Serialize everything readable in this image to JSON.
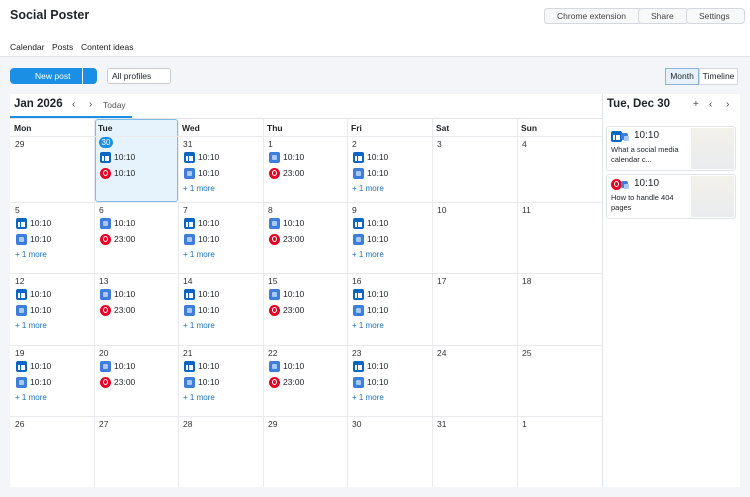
{
  "app": {
    "title": "Social Poster",
    "actions": [
      "Chrome extension",
      "Share",
      "Settings"
    ],
    "tabs": [
      "Calendar",
      "Posts",
      "Content ideas"
    ],
    "active_tab": 0
  },
  "toolbar": {
    "new_post": "New post",
    "profiles": "All profiles",
    "views": [
      "Month",
      "Timeline"
    ],
    "active_view": 0
  },
  "calendar": {
    "month": "Jan 2026",
    "today_button": "Today",
    "weekdays": [
      "Mon",
      "Tue",
      "Wed",
      "Thu",
      "Fri",
      "Sat",
      "Sun"
    ],
    "weeks": [
      [
        {
          "date": "29",
          "posts": []
        },
        {
          "date": "30",
          "today": true,
          "posts": [
            {
              "platform": "linkedin",
              "time": "10:10"
            },
            {
              "platform": "pinterest",
              "time": "10:10"
            }
          ]
        },
        {
          "date": "31",
          "posts": [
            {
              "platform": "linkedin",
              "time": "10:10"
            },
            {
              "platform": "gbp",
              "time": "10:10"
            }
          ],
          "more": "+ 1 more"
        },
        {
          "date": "1",
          "posts": [
            {
              "platform": "gbp",
              "time": "10:10"
            },
            {
              "platform": "pinterest",
              "time": "23:00"
            }
          ]
        },
        {
          "date": "2",
          "posts": [
            {
              "platform": "linkedin",
              "time": "10:10"
            },
            {
              "platform": "gbp",
              "time": "10:10"
            }
          ],
          "more": "+ 1 more"
        },
        {
          "date": "3",
          "posts": []
        },
        {
          "date": "4",
          "posts": []
        }
      ],
      [
        {
          "date": "5",
          "posts": [
            {
              "platform": "linkedin",
              "time": "10:10"
            },
            {
              "platform": "gbp",
              "time": "10:10"
            }
          ],
          "more": "+ 1 more"
        },
        {
          "date": "6",
          "posts": [
            {
              "platform": "gbp",
              "time": "10:10"
            },
            {
              "platform": "pinterest",
              "time": "23:00"
            }
          ]
        },
        {
          "date": "7",
          "posts": [
            {
              "platform": "linkedin",
              "time": "10:10"
            },
            {
              "platform": "gbp",
              "time": "10:10"
            }
          ],
          "more": "+ 1 more"
        },
        {
          "date": "8",
          "posts": [
            {
              "platform": "gbp",
              "time": "10:10"
            },
            {
              "platform": "pinterest",
              "time": "23:00"
            }
          ]
        },
        {
          "date": "9",
          "posts": [
            {
              "platform": "linkedin",
              "time": "10:10"
            },
            {
              "platform": "gbp",
              "time": "10:10"
            }
          ],
          "more": "+ 1 more"
        },
        {
          "date": "10",
          "posts": []
        },
        {
          "date": "11",
          "posts": []
        }
      ],
      [
        {
          "date": "12",
          "posts": [
            {
              "platform": "linkedin",
              "time": "10:10"
            },
            {
              "platform": "gbp",
              "time": "10:10"
            }
          ],
          "more": "+ 1 more"
        },
        {
          "date": "13",
          "posts": [
            {
              "platform": "gbp",
              "time": "10:10"
            },
            {
              "platform": "pinterest",
              "time": "23:00"
            }
          ]
        },
        {
          "date": "14",
          "posts": [
            {
              "platform": "linkedin",
              "time": "10:10"
            },
            {
              "platform": "gbp",
              "time": "10:10"
            }
          ],
          "more": "+ 1 more"
        },
        {
          "date": "15",
          "posts": [
            {
              "platform": "gbp",
              "time": "10:10"
            },
            {
              "platform": "pinterest",
              "time": "23:00"
            }
          ]
        },
        {
          "date": "16",
          "posts": [
            {
              "platform": "linkedin",
              "time": "10:10"
            },
            {
              "platform": "gbp",
              "time": "10:10"
            }
          ],
          "more": "+ 1 more"
        },
        {
          "date": "17",
          "posts": []
        },
        {
          "date": "18",
          "posts": []
        }
      ],
      [
        {
          "date": "19",
          "posts": [
            {
              "platform": "linkedin",
              "time": "10:10"
            },
            {
              "platform": "gbp",
              "time": "10:10"
            }
          ],
          "more": "+ 1 more"
        },
        {
          "date": "20",
          "posts": [
            {
              "platform": "gbp",
              "time": "10:10"
            },
            {
              "platform": "pinterest",
              "time": "23:00"
            }
          ]
        },
        {
          "date": "21",
          "posts": [
            {
              "platform": "linkedin",
              "time": "10:10"
            },
            {
              "platform": "gbp",
              "time": "10:10"
            }
          ],
          "more": "+ 1 more"
        },
        {
          "date": "22",
          "posts": [
            {
              "platform": "gbp",
              "time": "10:10"
            },
            {
              "platform": "pinterest",
              "time": "23:00"
            }
          ]
        },
        {
          "date": "23",
          "posts": [
            {
              "platform": "linkedin",
              "time": "10:10"
            },
            {
              "platform": "gbp",
              "time": "10:10"
            }
          ],
          "more": "+ 1 more"
        },
        {
          "date": "24",
          "posts": []
        },
        {
          "date": "25",
          "posts": []
        }
      ],
      [
        {
          "date": "26",
          "posts": []
        },
        {
          "date": "27",
          "posts": []
        },
        {
          "date": "28",
          "posts": []
        },
        {
          "date": "29",
          "posts": []
        },
        {
          "date": "30",
          "posts": []
        },
        {
          "date": "31",
          "posts": []
        },
        {
          "date": "1",
          "posts": []
        }
      ]
    ]
  },
  "side_panel": {
    "title": "Tue, Dec 30",
    "posts": [
      {
        "platforms": [
          "linkedin",
          "gbp"
        ],
        "time": "10:10",
        "text": "What a social media calendar c..."
      },
      {
        "platforms": [
          "pinterest",
          "gbp"
        ],
        "time": "10:10",
        "text": "How to handle 404 pages"
      }
    ]
  }
}
